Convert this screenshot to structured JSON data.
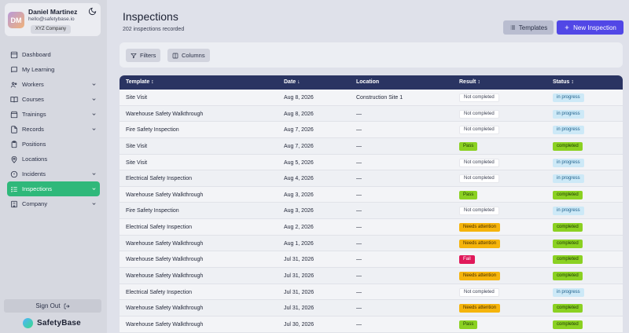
{
  "user": {
    "initials": "DM",
    "name": "Daniel Martinez",
    "email": "hello@safetybase.io",
    "company": "XYZ Company"
  },
  "nav": [
    {
      "label": "Dashboard",
      "icon": "dashboard-icon",
      "chevron": false,
      "active": false
    },
    {
      "label": "My Learning",
      "icon": "book-icon",
      "chevron": false,
      "active": false
    },
    {
      "label": "Workers",
      "icon": "users-icon",
      "chevron": true,
      "active": false
    },
    {
      "label": "Courses",
      "icon": "book-open-icon",
      "chevron": true,
      "active": false
    },
    {
      "label": "Trainings",
      "icon": "clapperboard-icon",
      "chevron": true,
      "active": false
    },
    {
      "label": "Records",
      "icon": "document-icon",
      "chevron": true,
      "active": false
    },
    {
      "label": "Positions",
      "icon": "clipboard-icon",
      "chevron": false,
      "active": false
    },
    {
      "label": "Locations",
      "icon": "map-pin-icon",
      "chevron": false,
      "active": false
    },
    {
      "label": "Incidents",
      "icon": "alert-circle-icon",
      "chevron": true,
      "active": false
    },
    {
      "label": "Inspections",
      "icon": "list-checks-icon",
      "chevron": true,
      "active": true
    },
    {
      "label": "Company",
      "icon": "building-icon",
      "chevron": true,
      "active": false
    }
  ],
  "sign_out": "Sign Out",
  "brand": "SafetyBase",
  "page": {
    "title": "Inspections",
    "subtitle": "202 inspections recorded",
    "templates_label": "Templates",
    "new_label": "New Inspection",
    "filters_label": "Filters",
    "columns_label": "Columns"
  },
  "table": {
    "columns": [
      "Template ↕",
      "Date ↓",
      "Location",
      "Result ↕",
      "Status ↕"
    ],
    "rows": [
      {
        "template": "Site Visit",
        "date": "Aug 8, 2026",
        "location": "Construction Site 1",
        "result": "Not completed",
        "status": "in progress"
      },
      {
        "template": "Warehouse Safety Walkthrough",
        "date": "Aug 8, 2026",
        "location": "—",
        "result": "Not completed",
        "status": "in progress"
      },
      {
        "template": "Fire Safety Inspection",
        "date": "Aug 7, 2026",
        "location": "—",
        "result": "Not completed",
        "status": "in progress"
      },
      {
        "template": "Site Visit",
        "date": "Aug 7, 2026",
        "location": "—",
        "result": "Pass",
        "status": "completed"
      },
      {
        "template": "Site Visit",
        "date": "Aug 5, 2026",
        "location": "—",
        "result": "Not completed",
        "status": "in progress"
      },
      {
        "template": "Electrical Safety Inspection",
        "date": "Aug 4, 2026",
        "location": "—",
        "result": "Not completed",
        "status": "in progress"
      },
      {
        "template": "Warehouse Safety Walkthrough",
        "date": "Aug 3, 2026",
        "location": "—",
        "result": "Pass",
        "status": "completed"
      },
      {
        "template": "Fire Safety Inspection",
        "date": "Aug 3, 2026",
        "location": "—",
        "result": "Not completed",
        "status": "in progress"
      },
      {
        "template": "Electrical Safety Inspection",
        "date": "Aug 2, 2026",
        "location": "—",
        "result": "Needs attention",
        "status": "completed"
      },
      {
        "template": "Warehouse Safety Walkthrough",
        "date": "Aug 1, 2026",
        "location": "—",
        "result": "Needs attention",
        "status": "completed"
      },
      {
        "template": "Warehouse Safety Walkthrough",
        "date": "Jul 31, 2026",
        "location": "—",
        "result": "Fail",
        "status": "completed"
      },
      {
        "template": "Warehouse Safety Walkthrough",
        "date": "Jul 31, 2026",
        "location": "—",
        "result": "Needs attention",
        "status": "completed"
      },
      {
        "template": "Electrical Safety Inspection",
        "date": "Jul 31, 2026",
        "location": "—",
        "result": "Not completed",
        "status": "in progress"
      },
      {
        "template": "Warehouse Safety Walkthrough",
        "date": "Jul 31, 2026",
        "location": "—",
        "result": "Needs attention",
        "status": "completed"
      },
      {
        "template": "Warehouse Safety Walkthrough",
        "date": "Jul 30, 2026",
        "location": "—",
        "result": "Pass",
        "status": "completed"
      }
    ]
  },
  "colors": {
    "accent": "#5147e6",
    "active_nav": "#2fb87a",
    "table_header": "#2a3462",
    "pass": "#8bd122",
    "needs_attention": "#f5b40c",
    "fail": "#e0185a",
    "in_progress": "#cde9f7"
  }
}
